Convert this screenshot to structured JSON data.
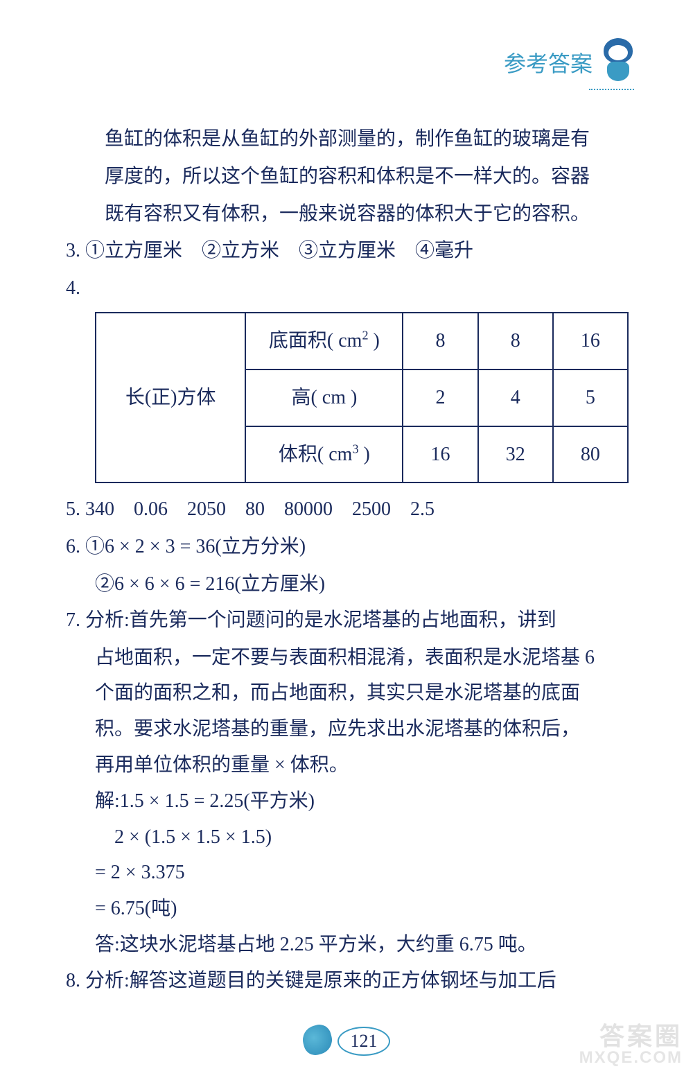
{
  "header": {
    "title": "参考答案"
  },
  "content": {
    "p1a": "鱼缸的体积是从鱼缸的外部测量的，制作鱼缸的玻璃是有",
    "p1b": "厚度的，所以这个鱼缸的容积和体积是不一样大的。容器",
    "p1c": "既有容积又有体积，一般来说容器的体积大于它的容积。",
    "p3": "3. ①立方厘米　②立方米　③立方厘米　④毫升",
    "p4": "4.",
    "table": {
      "rowHeader": "长(正)方体",
      "rows": [
        {
          "label": "底面积( cm² )",
          "c1": "8",
          "c2": "8",
          "c3": "16"
        },
        {
          "label": "高( cm )",
          "c1": "2",
          "c2": "4",
          "c3": "5"
        },
        {
          "label": "体积( cm³ )",
          "c1": "16",
          "c2": "32",
          "c3": "80"
        }
      ]
    },
    "p5": "5. 340　0.06　2050　80　80000　2500　2.5",
    "p6a": "6. ①6 × 2 × 3 = 36(立方分米)",
    "p6b": "②6 × 6 × 6 = 216(立方厘米)",
    "p7a": "7. 分析:首先第一个问题问的是水泥塔基的占地面积，讲到",
    "p7b": "占地面积，一定不要与表面积相混淆，表面积是水泥塔基 6",
    "p7c": "个面的面积之和，而占地面积，其实只是水泥塔基的底面",
    "p7d": "积。要求水泥塔基的重量，应先求出水泥塔基的体积后，",
    "p7e": "再用单位体积的重量 × 体积。",
    "p7f": "解:1.5 × 1.5 = 2.25(平方米)",
    "p7g": "2 × (1.5 × 1.5 × 1.5)",
    "p7h": "= 2 × 3.375",
    "p7i": "= 6.75(吨)",
    "p7j": "答:这块水泥塔基占地 2.25 平方米，大约重 6.75 吨。",
    "p8": "8. 分析:解答这道题目的关键是原来的正方体钢坯与加工后"
  },
  "footer": {
    "pageNum": "121"
  },
  "watermark": {
    "top": "答案圈",
    "bottom": "MXQE.COM"
  },
  "colors": {
    "text": "#1a2a5c",
    "accent": "#3a9bc4",
    "background": "#ffffff",
    "watermark": "#d0d0d0"
  }
}
